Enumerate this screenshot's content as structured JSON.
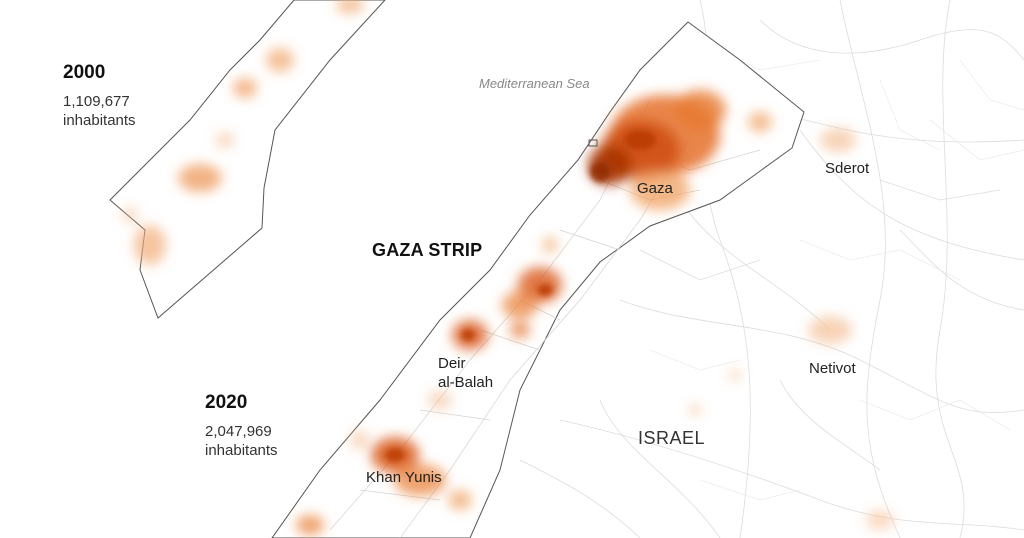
{
  "map": {
    "region_label": "GAZA STRIP",
    "country_label": "ISRAEL",
    "sea_label": "Mediterranean Sea",
    "cities": {
      "gaza": "Gaza",
      "deir_line1": "Deir",
      "deir_line2": "al-Balah",
      "khan_yunis": "Khan Yunis",
      "sderot": "Sderot",
      "netivot": "Netivot"
    }
  },
  "inset_2000": {
    "year": "2000",
    "population": "1,109,677",
    "unit": "inhabitants"
  },
  "main_2020": {
    "year": "2020",
    "population": "2,047,969",
    "unit": "inhabitants"
  },
  "colors": {
    "density_high": "#b83a00",
    "density_mid": "#e0661f",
    "density_low": "#f5b98a",
    "roads": "#d9d9d9",
    "border": "#555555"
  }
}
